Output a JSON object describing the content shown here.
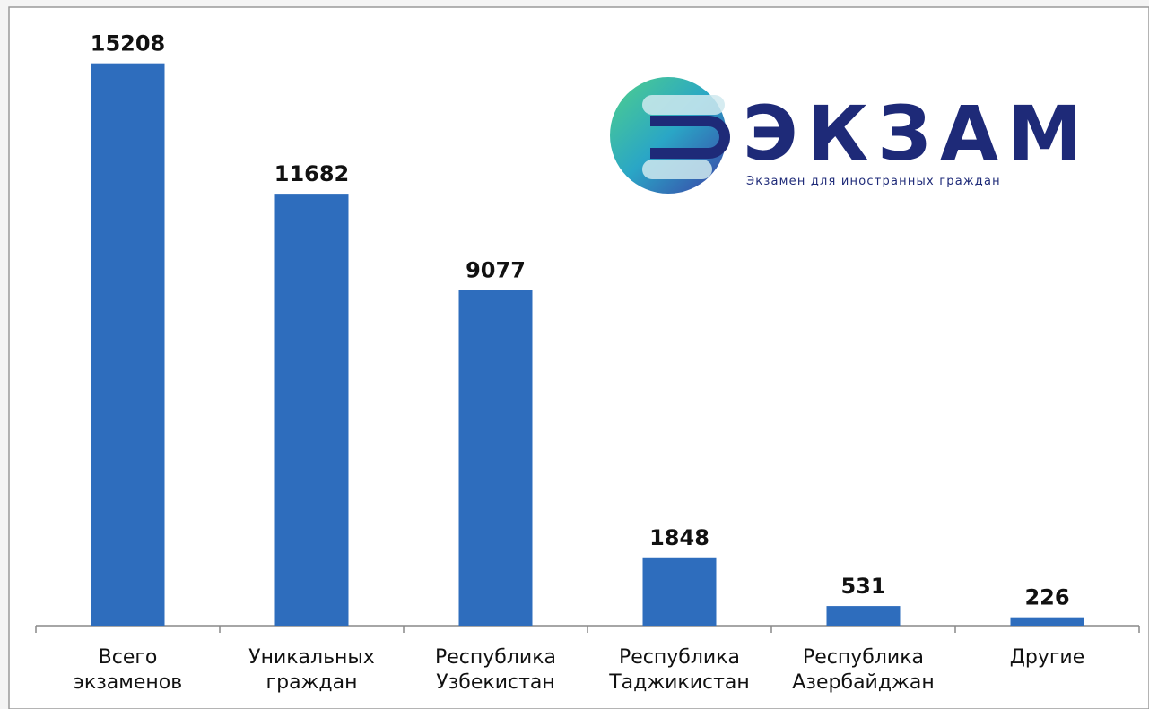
{
  "chart_data": {
    "type": "bar",
    "categories": [
      "Всего экзаменов",
      "Уникальных граждан",
      "Республика Узбекистан",
      "Республика Таджикистан",
      "Республика Азербайджан",
      "Другие"
    ],
    "values": [
      15208,
      11682,
      9077,
      1848,
      531,
      226
    ],
    "color": "#2e6dbd",
    "ylim": [
      0,
      16000
    ]
  },
  "logo": {
    "title": "ЭКЗАМ",
    "subtitle": "Экзамен для иностранных граждан"
  }
}
